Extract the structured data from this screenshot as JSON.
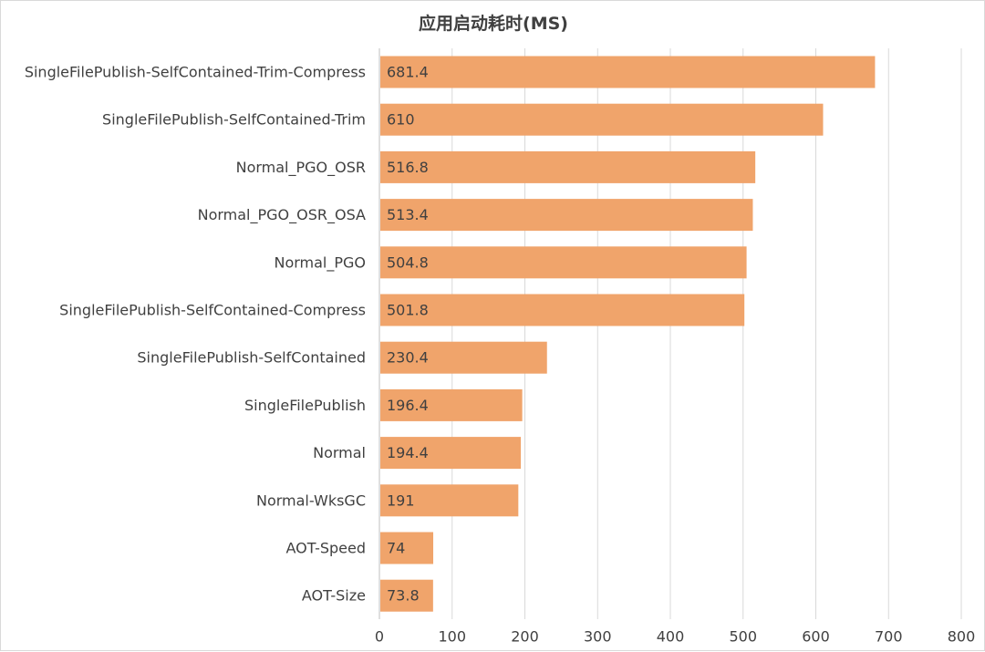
{
  "chart_data": {
    "type": "bar",
    "orientation": "horizontal",
    "title": "应用启动耗时(MS)",
    "xlabel": "",
    "ylabel": "",
    "categories": [
      "SingleFilePublish-SelfContained-Trim-Compress",
      "SingleFilePublish-SelfContained-Trim",
      "Normal_PGO_OSR",
      "Normal_PGO_OSR_OSA",
      "Normal_PGO",
      "SingleFilePublish-SelfContained-Compress",
      "SingleFilePublish-SelfContained",
      "SingleFilePublish",
      "Normal",
      "Normal-WksGC",
      "AOT-Speed",
      "AOT-Size"
    ],
    "values": [
      681.4,
      610,
      516.8,
      513.4,
      504.8,
      501.8,
      230.4,
      196.4,
      194.4,
      191,
      74,
      73.8
    ],
    "value_labels": [
      "681.4",
      "610",
      "516.8",
      "513.4",
      "504.8",
      "501.8",
      "230.4",
      "196.4",
      "194.4",
      "191",
      "74",
      "73.8"
    ],
    "xlim": [
      0,
      800
    ],
    "x_ticks": [
      "0",
      "100",
      "200",
      "300",
      "400",
      "500",
      "600",
      "700",
      "800"
    ],
    "grid": "vertical",
    "legend": "none",
    "colors": {
      "bar": "#F0A46B",
      "grid": "#d9d9d9",
      "text": "#404040",
      "data_label": "#404040"
    }
  }
}
